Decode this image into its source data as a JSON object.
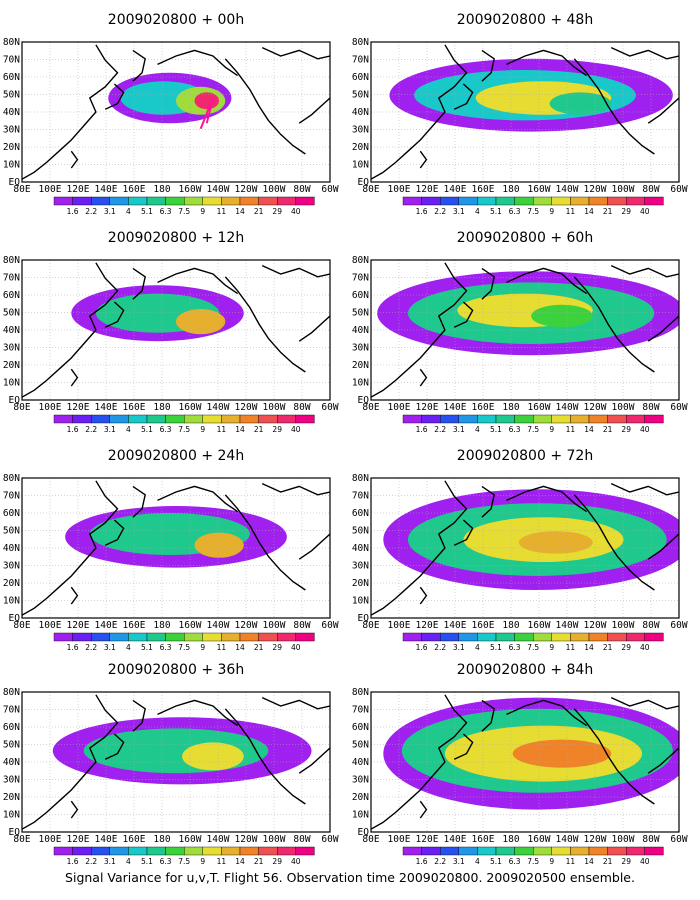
{
  "figure": {
    "caption": "Signal Variance for u,v,T. Flight 56. Observation time 2009020800. 2009020500 ensemble.",
    "lat_labels": [
      "80N",
      "70N",
      "60N",
      "50N",
      "40N",
      "30N",
      "20N",
      "10N",
      "EQ"
    ],
    "lon_labels": [
      "80E",
      "100E",
      "120E",
      "140E",
      "160E",
      "180",
      "160W",
      "140W",
      "120W",
      "100W",
      "80W",
      "60W"
    ],
    "colorbar": {
      "levels": [
        "1.6",
        "2.2",
        "3.1",
        "4",
        "5.1",
        "6.3",
        "7.5",
        "9",
        "11",
        "14",
        "21",
        "29",
        "40"
      ],
      "colors": [
        "#a020f0",
        "#6a1ff5",
        "#2850f0",
        "#1f96e6",
        "#19c8c8",
        "#1fc88c",
        "#3cd23c",
        "#a0dc3c",
        "#e6dc32",
        "#e6af2d",
        "#f08228",
        "#f05050",
        "#f0286e",
        "#f00082"
      ]
    },
    "panels": [
      {
        "title": "2009020800 + 00h",
        "lead": "00h"
      },
      {
        "title": "2009020800 + 48h",
        "lead": "48h"
      },
      {
        "title": "2009020800 + 12h",
        "lead": "12h"
      },
      {
        "title": "2009020800 + 60h",
        "lead": "60h"
      },
      {
        "title": "2009020800 + 24h",
        "lead": "24h"
      },
      {
        "title": "2009020800 + 72h",
        "lead": "72h"
      },
      {
        "title": "2009020800 + 36h",
        "lead": "36h"
      },
      {
        "title": "2009020800 + 84h",
        "lead": "84h"
      }
    ]
  }
}
